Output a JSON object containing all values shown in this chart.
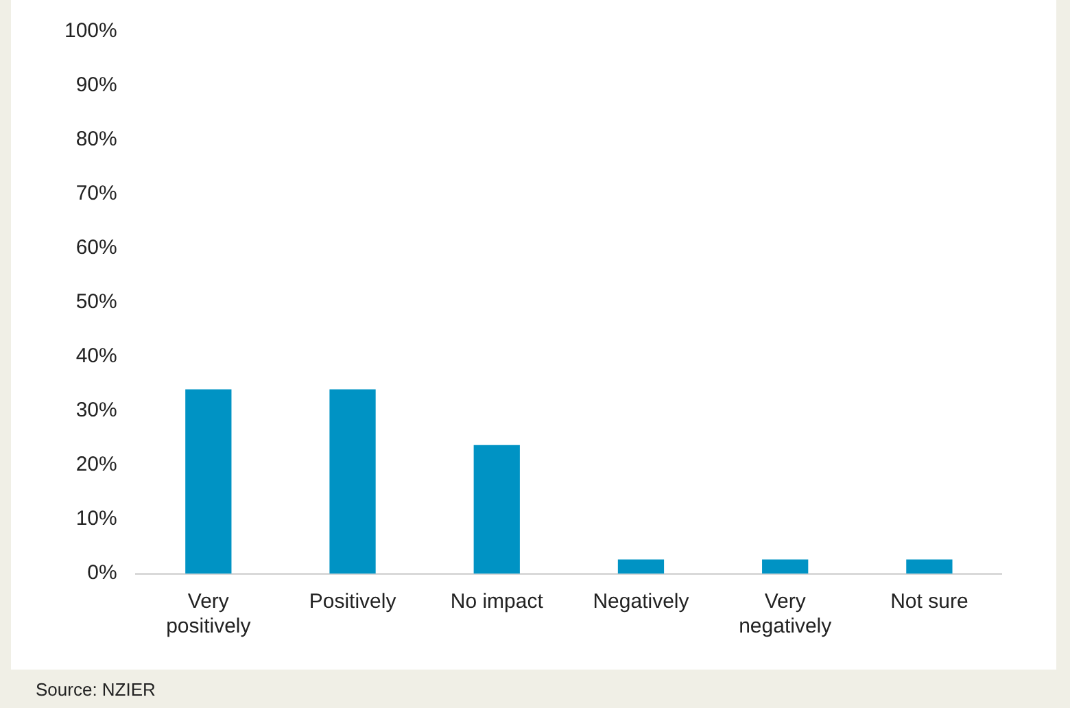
{
  "chart_data": {
    "type": "bar",
    "categories": [
      "Very positively",
      "Positively",
      "No impact",
      "Negatively",
      "Very negatively",
      "Not sure"
    ],
    "values": [
      34,
      34,
      23.7,
      2.6,
      2.6,
      2.6
    ],
    "color": "#0093c4",
    "ylim": [
      0,
      100
    ],
    "yticks": [
      {
        "value": 0,
        "label": "0%"
      },
      {
        "value": 10,
        "label": "10%"
      },
      {
        "value": 20,
        "label": "20%"
      },
      {
        "value": 30,
        "label": "30%"
      },
      {
        "value": 40,
        "label": "40%"
      },
      {
        "value": 50,
        "label": "50%"
      },
      {
        "value": 60,
        "label": "60%"
      },
      {
        "value": 70,
        "label": "70%"
      },
      {
        "value": 80,
        "label": "80%"
      },
      {
        "value": 90,
        "label": "90%"
      },
      {
        "value": 100,
        "label": "100%"
      }
    ],
    "grid": false,
    "legend": false,
    "annotations": [
      "Source: NZIER"
    ]
  }
}
